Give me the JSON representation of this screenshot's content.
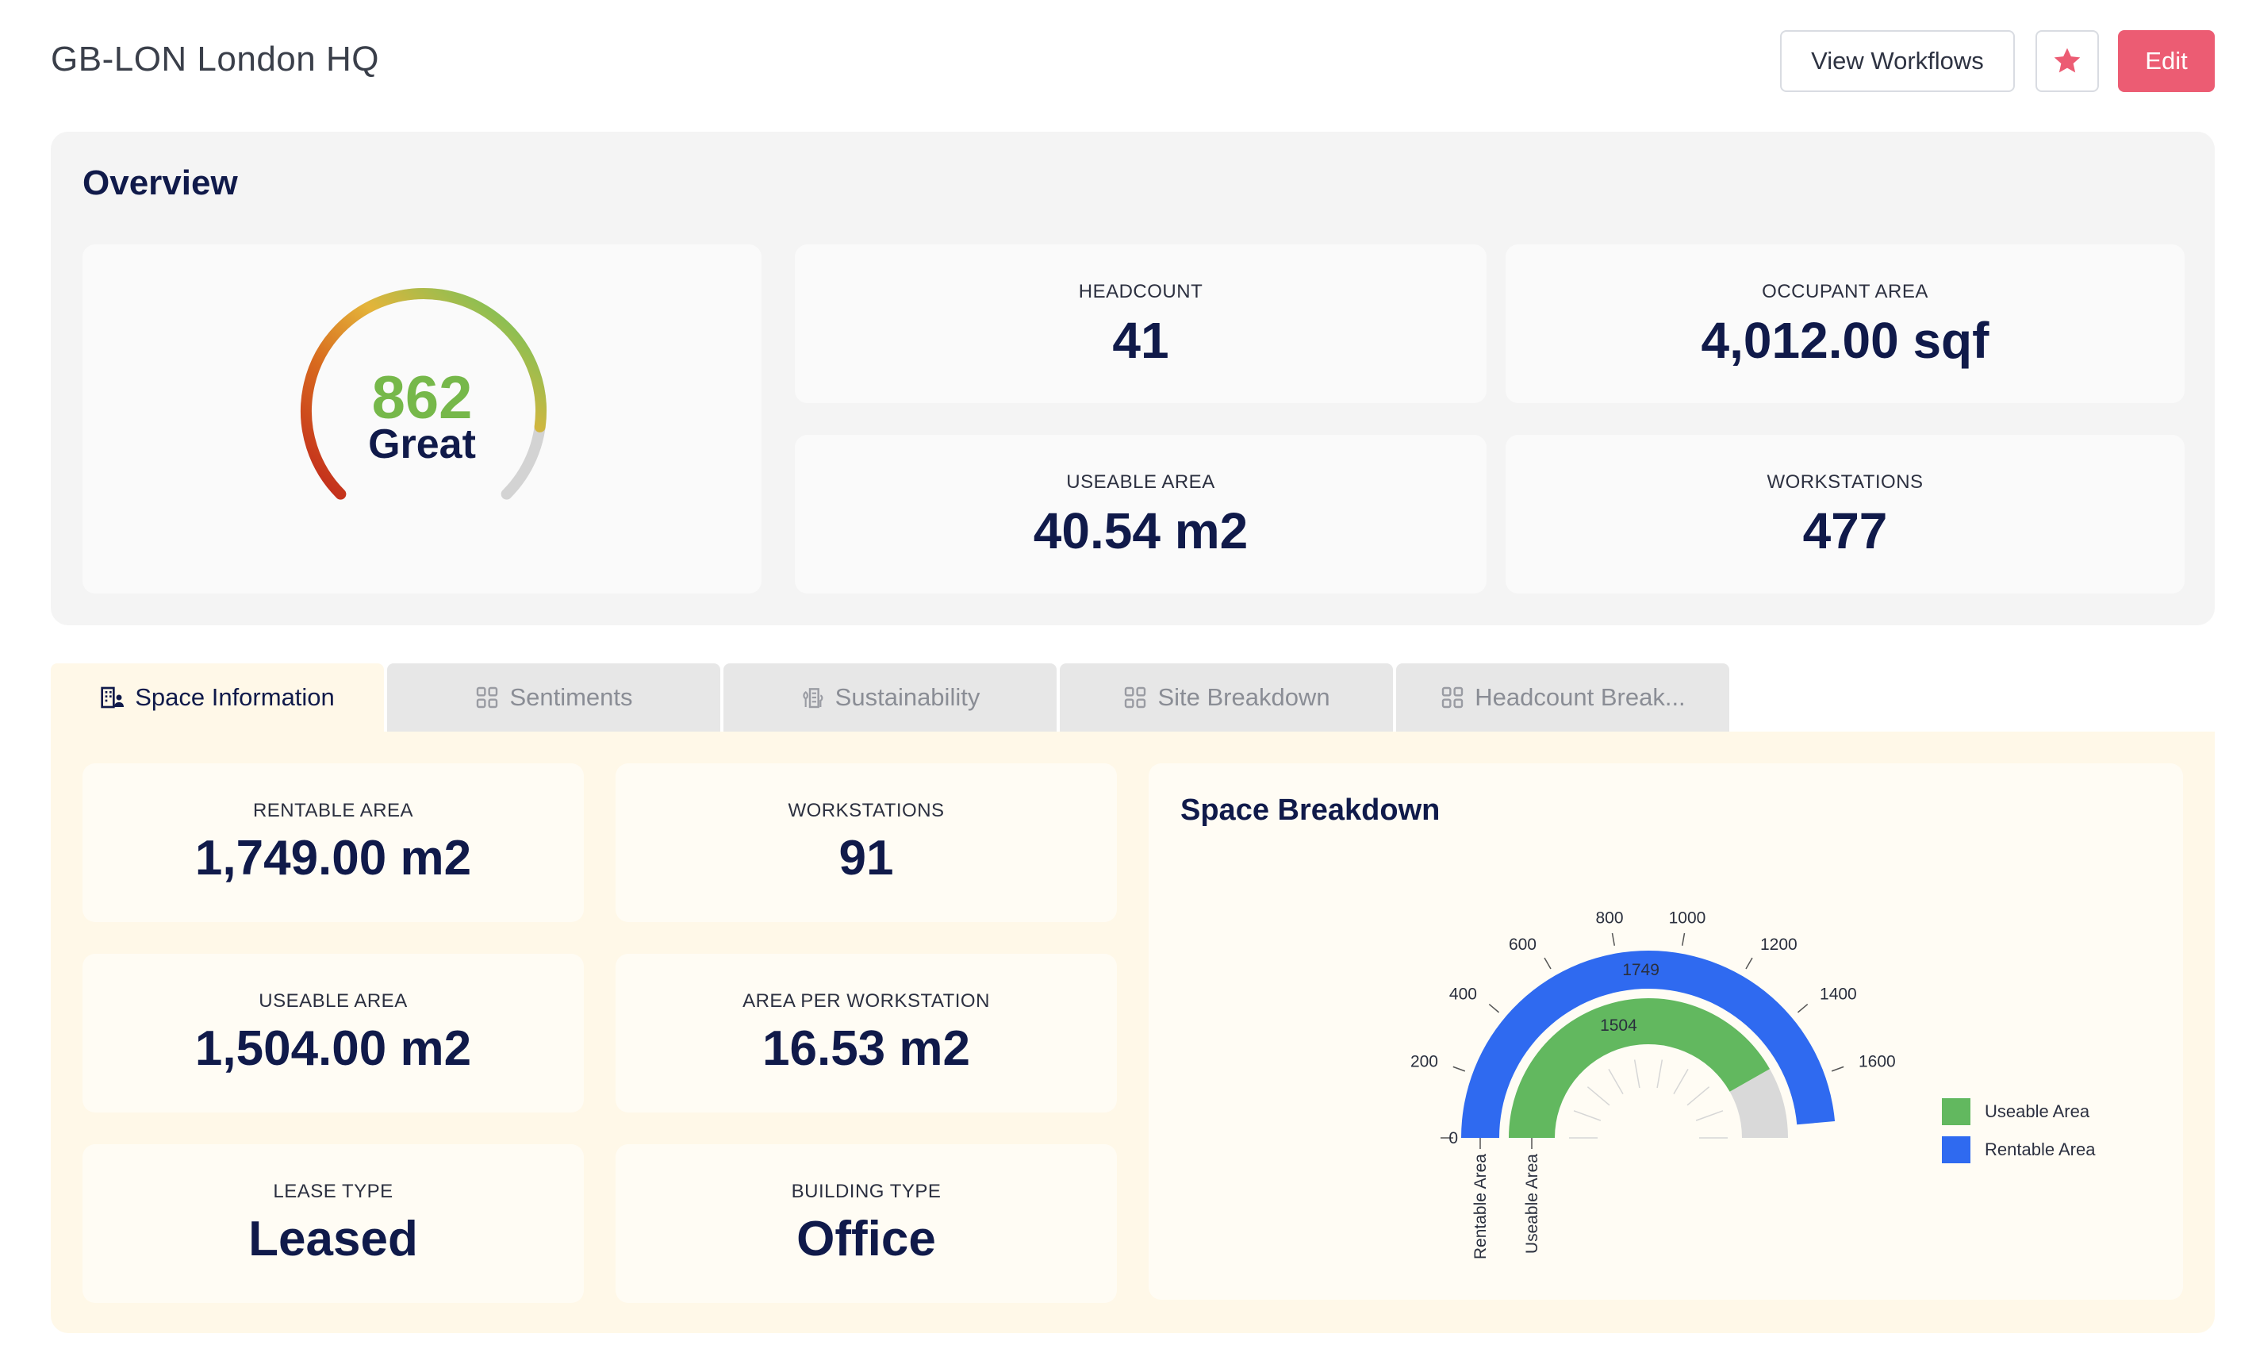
{
  "header": {
    "title": "GB-LON London HQ",
    "view_workflows_label": "View Workflows",
    "edit_label": "Edit"
  },
  "overview": {
    "title": "Overview",
    "score": {
      "value": "862",
      "label": "Great",
      "fraction": 0.862
    },
    "stats": [
      {
        "label": "HEADCOUNT",
        "value": "41"
      },
      {
        "label": "OCCUPANT AREA",
        "value": "4,012.00 sqf"
      },
      {
        "label": "USEABLE AREA",
        "value": "40.54 m2"
      },
      {
        "label": "WORKSTATIONS",
        "value": "477"
      }
    ]
  },
  "tabs": [
    {
      "label": "Space Information",
      "icon": "building-user-icon",
      "active": true
    },
    {
      "label": "Sentiments",
      "icon": "grid-icon",
      "active": false
    },
    {
      "label": "Sustainability",
      "icon": "eco-building-icon",
      "active": false
    },
    {
      "label": "Site Breakdown",
      "icon": "grid-icon",
      "active": false
    },
    {
      "label": "Headcount Break...",
      "icon": "grid-icon",
      "active": false
    }
  ],
  "space_info": {
    "stats": [
      {
        "label": "RENTABLE AREA",
        "value": "1,749.00 m2"
      },
      {
        "label": "WORKSTATIONS",
        "value": "91"
      },
      {
        "label": "USEABLE AREA",
        "value": "1,504.00 m2"
      },
      {
        "label": "AREA PER WORKSTATION",
        "value": "16.53 m2"
      },
      {
        "label": "LEASE TYPE",
        "value": "Leased"
      },
      {
        "label": "BUILDING TYPE",
        "value": "Office"
      }
    ]
  },
  "chart_data": {
    "type": "radial-bar",
    "title": "Space Breakdown",
    "axis_max": 1800,
    "ticks": [
      0,
      200,
      400,
      600,
      800,
      1000,
      1200,
      1400,
      1600
    ],
    "categories": [
      "Rentable Area",
      "Useable Area"
    ],
    "series": [
      {
        "name": "Rentable Area",
        "value": 1749,
        "color": "#2f6af0"
      },
      {
        "name": "Useable Area",
        "value": 1504,
        "color": "#62b85f"
      }
    ],
    "legend": "right"
  },
  "colors": {
    "accent": "#ec5c73",
    "navy": "#101a4a",
    "green": "#62b85f",
    "blue": "#2f6af0"
  }
}
